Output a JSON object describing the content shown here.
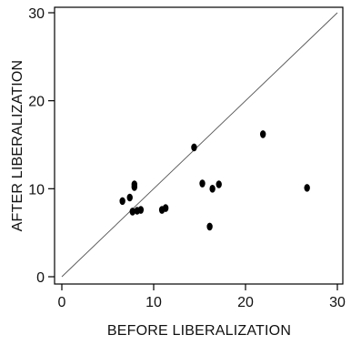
{
  "chart_data": {
    "type": "scatter",
    "xlabel": "BEFORE LIBERALIZATION",
    "ylabel": "AFTER LIBERALIZATION",
    "xlim": [
      0,
      30
    ],
    "ylim": [
      0,
      30
    ],
    "xticks": [
      0,
      10,
      20,
      30
    ],
    "yticks": [
      0,
      10,
      20,
      30
    ],
    "reference_line": "y = x",
    "grid": false,
    "points": [
      {
        "x": 6.6,
        "y": 8.6
      },
      {
        "x": 7.4,
        "y": 9.0
      },
      {
        "x": 7.7,
        "y": 7.4
      },
      {
        "x": 7.9,
        "y": 10.2
      },
      {
        "x": 7.9,
        "y": 10.5
      },
      {
        "x": 8.2,
        "y": 7.5
      },
      {
        "x": 8.6,
        "y": 7.6
      },
      {
        "x": 10.9,
        "y": 7.6
      },
      {
        "x": 11.3,
        "y": 7.8
      },
      {
        "x": 14.4,
        "y": 14.7
      },
      {
        "x": 15.3,
        "y": 10.6
      },
      {
        "x": 16.1,
        "y": 5.7
      },
      {
        "x": 16.4,
        "y": 10.0
      },
      {
        "x": 17.1,
        "y": 10.5
      },
      {
        "x": 21.9,
        "y": 16.2
      },
      {
        "x": 26.7,
        "y": 10.1
      }
    ]
  }
}
